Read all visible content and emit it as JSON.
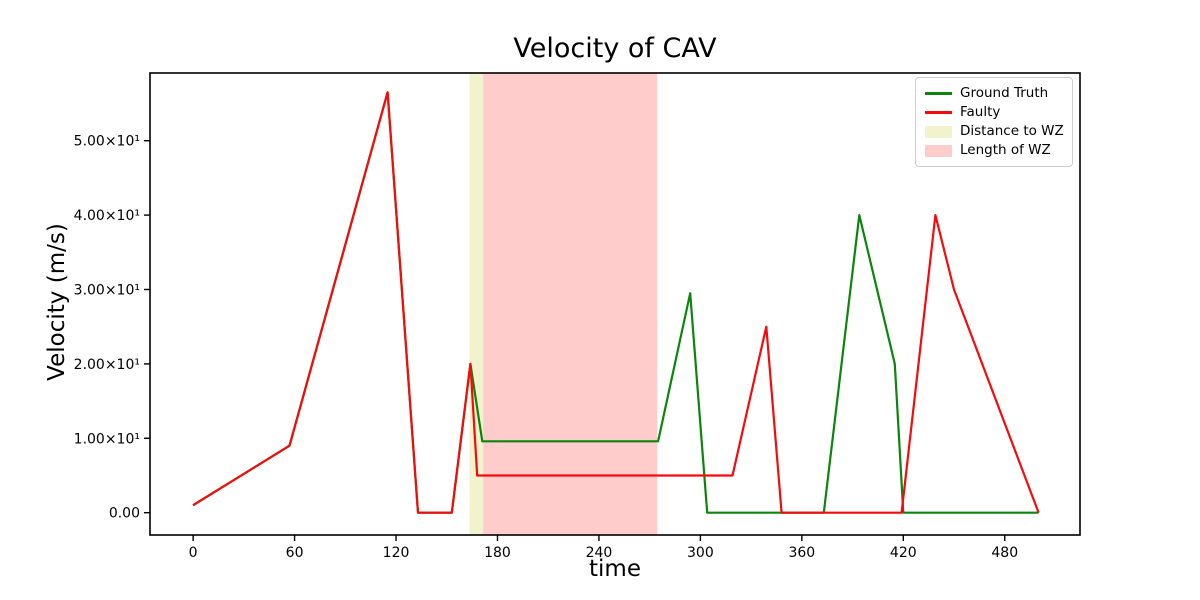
{
  "chart_data": {
    "type": "line",
    "title": "Velocity of CAV",
    "xlabel": "time",
    "ylabel": "Velocity (m/s)",
    "grid": false,
    "xlim": [
      -25.5,
      524.5
    ],
    "ylim": [
      -3.0,
      59.1
    ],
    "xticks": [
      0,
      60,
      120,
      180,
      240,
      300,
      360,
      420,
      480
    ],
    "yticks": [
      {
        "value": 0,
        "label": "0.00"
      },
      {
        "value": 10,
        "label": "1.00×10¹"
      },
      {
        "value": 20,
        "label": "2.00×10¹"
      },
      {
        "value": 30,
        "label": "3.00×10¹"
      },
      {
        "value": 40,
        "label": "4.00×10¹"
      },
      {
        "value": 50,
        "label": "5.00×10¹"
      }
    ],
    "series": [
      {
        "name": "Ground Truth",
        "color": "#0b850b",
        "points": [
          [
            0,
            1
          ],
          [
            57,
            9
          ],
          [
            115,
            56.5
          ],
          [
            133,
            0
          ],
          [
            153,
            0
          ],
          [
            164,
            20
          ],
          [
            171,
            9.6
          ],
          [
            275,
            9.6
          ],
          [
            294,
            29.5
          ],
          [
            304,
            0
          ],
          [
            373,
            0
          ],
          [
            394,
            40
          ],
          [
            415,
            20
          ],
          [
            420,
            0
          ],
          [
            500,
            0
          ]
        ]
      },
      {
        "name": "Faulty",
        "color": "#f40b0b",
        "points": [
          [
            0,
            1
          ],
          [
            57,
            9
          ],
          [
            115,
            56.5
          ],
          [
            133,
            0
          ],
          [
            153,
            0
          ],
          [
            164,
            20
          ],
          [
            168,
            5
          ],
          [
            319,
            5
          ],
          [
            339,
            25
          ],
          [
            348,
            0
          ],
          [
            419,
            0
          ],
          [
            439,
            40
          ],
          [
            450,
            30
          ],
          [
            500,
            0
          ]
        ]
      }
    ],
    "bands": [
      {
        "name": "Distance to WZ",
        "x0": 163.5,
        "x1": 171.5,
        "color": "#f2f2cc"
      },
      {
        "name": "Length of WZ",
        "x0": 171.5,
        "x1": 274.5,
        "color": "#ffcccc"
      }
    ],
    "legend": {
      "position": "upper right",
      "items": [
        {
          "label": "Ground Truth",
          "swatch": "line",
          "color": "#0b850b"
        },
        {
          "label": "Faulty",
          "swatch": "line",
          "color": "#f40b0b"
        },
        {
          "label": "Distance to WZ",
          "swatch": "patch",
          "color": "#f2f2cc"
        },
        {
          "label": "Length of WZ",
          "swatch": "patch",
          "color": "#ffcccc"
        }
      ]
    }
  }
}
